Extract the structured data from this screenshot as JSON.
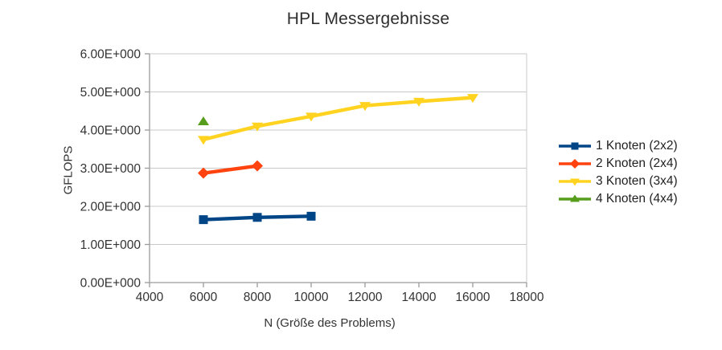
{
  "chart_data": {
    "type": "line",
    "title": "HPL Messergebnisse",
    "xlabel": "N (Größe des Problems)",
    "ylabel": "GFLOPS",
    "xlim": [
      4000,
      18000
    ],
    "ylim": [
      0,
      6
    ],
    "grid": true,
    "legend_position": "right",
    "x_ticks": [
      4000,
      6000,
      8000,
      10000,
      12000,
      14000,
      16000,
      18000
    ],
    "x_tick_labels": [
      "4000",
      "6000",
      "8000",
      "10000",
      "12000",
      "14000",
      "16000",
      "18000"
    ],
    "y_ticks": [
      0,
      1,
      2,
      3,
      4,
      5,
      6
    ],
    "y_tick_labels": [
      "0.00E+000",
      "1.00E+000",
      "2.00E+000",
      "3.00E+000",
      "4.00E+000",
      "5.00E+000",
      "6.00E+000"
    ],
    "series": [
      {
        "name": "1 Knoten (2x2)",
        "color": "#004586",
        "marker": "square",
        "x": [
          6000,
          8000,
          10000
        ],
        "y": [
          1.65,
          1.71,
          1.74
        ]
      },
      {
        "name": "2 Knoten (2x4)",
        "color": "#ff420e",
        "marker": "diamond",
        "x": [
          6000,
          8000
        ],
        "y": [
          2.87,
          3.06
        ]
      },
      {
        "name": "3 Knoten (3x4)",
        "color": "#ffd320",
        "marker": "triangle-down",
        "x": [
          6000,
          8000,
          10000,
          12000,
          14000,
          16000
        ],
        "y": [
          3.75,
          4.1,
          4.36,
          4.64,
          4.75,
          4.85
        ]
      },
      {
        "name": "4 Knoten (4x4)",
        "color": "#579d1c",
        "marker": "triangle-up",
        "x": [
          6000
        ],
        "y": [
          4.22
        ]
      }
    ],
    "style": {
      "grid_color": "#c9c9c9",
      "axis_color": "#9b9b9b",
      "tick_label_color": "#333333",
      "background": "#ffffff"
    }
  }
}
